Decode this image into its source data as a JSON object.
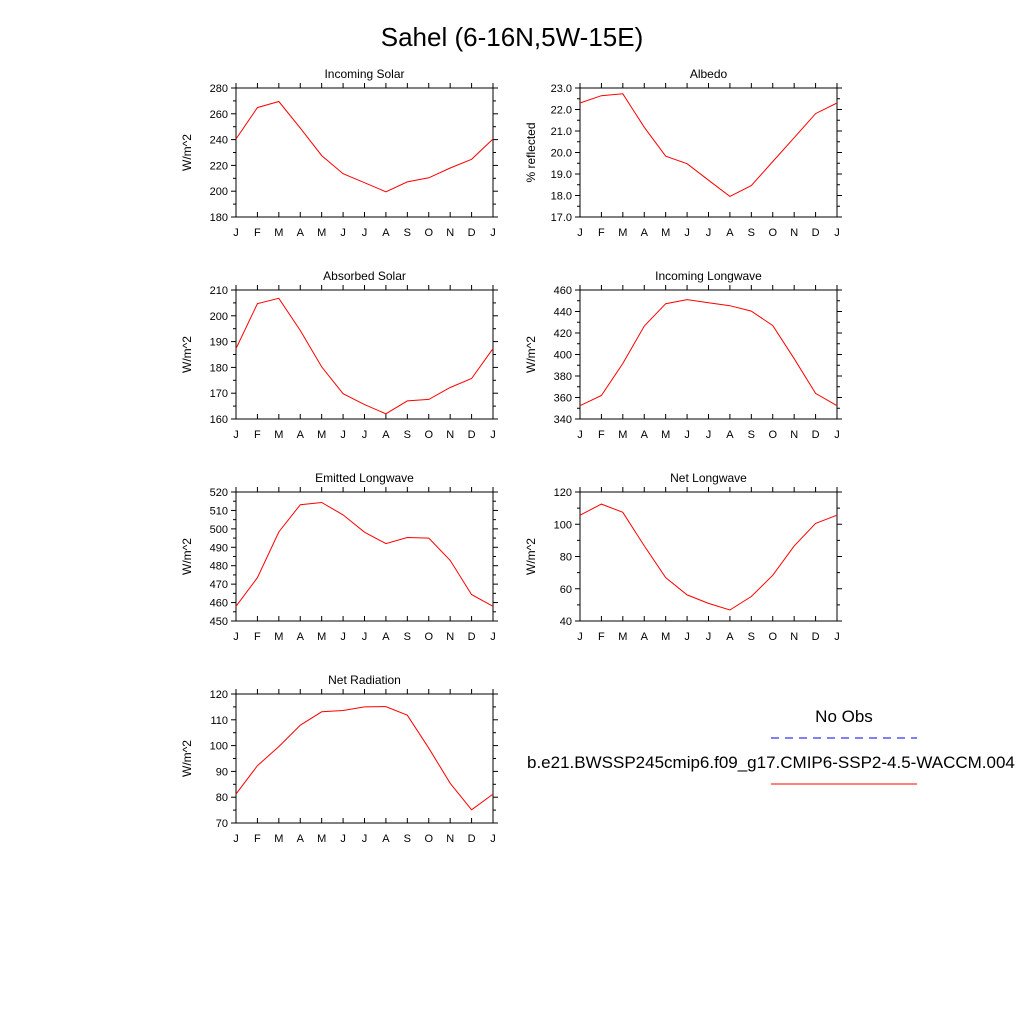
{
  "figure": {
    "title": "Sahel (6-16N,5W-15E)",
    "legend": {
      "placement": "right",
      "obs_label": "No Obs",
      "obs_color": "#0000ff",
      "model_label": "b.e21.BWSSP245cmip6.f09_g17.CMIP6-SSP2-4.5-WACCM.004",
      "model_color": "#ff0000"
    }
  },
  "chart_data": [
    {
      "type": "line",
      "title": "Incoming Solar",
      "ylabel": "W/m^2",
      "ylim": [
        180,
        280
      ],
      "yticks": [
        180,
        200,
        220,
        240,
        260,
        280
      ],
      "ytick_labels": [
        "180",
        "200",
        "220",
        "240",
        "260",
        "280"
      ],
      "categories": [
        "J",
        "F",
        "M",
        "A",
        "M",
        "J",
        "J",
        "A",
        "S",
        "O",
        "N",
        "D",
        "J"
      ],
      "values": [
        240.5,
        264.8,
        269.5,
        248.9,
        227.6,
        213.6,
        206.6,
        199.5,
        207.2,
        210.4,
        218.0,
        224.7,
        240.5
      ],
      "color": "#ff0000"
    },
    {
      "type": "line",
      "title": "Albedo",
      "ylabel": "% reflected",
      "ylim": [
        17.0,
        23.0
      ],
      "yticks": [
        17,
        18,
        19,
        20,
        21,
        22,
        23
      ],
      "ytick_labels": [
        "17.0",
        "18.0",
        "19.0",
        "20.0",
        "21.0",
        "22.0",
        "23.0"
      ],
      "categories": [
        "J",
        "F",
        "M",
        "A",
        "M",
        "J",
        "J",
        "A",
        "S",
        "O",
        "N",
        "D",
        "J"
      ],
      "values": [
        22.3,
        22.64,
        22.73,
        21.17,
        19.83,
        19.48,
        18.71,
        17.96,
        18.46,
        19.58,
        20.69,
        21.81,
        22.3
      ],
      "color": "#ff0000"
    },
    {
      "type": "line",
      "title": "Absorbed Solar",
      "ylabel": "W/m^2",
      "ylim": [
        160,
        210
      ],
      "yticks": [
        160,
        170,
        180,
        190,
        200,
        210
      ],
      "ytick_labels": [
        "160",
        "170",
        "180",
        "190",
        "200",
        "210"
      ],
      "categories": [
        "J",
        "F",
        "M",
        "A",
        "M",
        "J",
        "J",
        "A",
        "S",
        "O",
        "N",
        "D",
        "J"
      ],
      "values": [
        187.3,
        204.7,
        206.8,
        194.3,
        180.2,
        169.8,
        165.6,
        162.0,
        167.0,
        167.6,
        172.2,
        175.7,
        187.3
      ],
      "color": "#ff0000"
    },
    {
      "type": "line",
      "title": "Incoming Longwave",
      "ylabel": "W/m^2",
      "ylim": [
        340,
        460
      ],
      "yticks": [
        340,
        360,
        380,
        400,
        420,
        440,
        460
      ],
      "ytick_labels": [
        "340",
        "360",
        "380",
        "400",
        "420",
        "440",
        "460"
      ],
      "categories": [
        "J",
        "F",
        "M",
        "A",
        "M",
        "J",
        "J",
        "A",
        "S",
        "O",
        "N",
        "D",
        "J"
      ],
      "values": [
        352.4,
        361.9,
        391.6,
        426.5,
        447.3,
        451.1,
        448.2,
        445.4,
        440.4,
        426.9,
        396.1,
        363.8,
        352.4
      ],
      "color": "#ff0000"
    },
    {
      "type": "line",
      "title": "Emitted Longwave",
      "ylabel": "W/m^2",
      "ylim": [
        450,
        520
      ],
      "yticks": [
        450,
        460,
        470,
        480,
        490,
        500,
        510,
        520
      ],
      "ytick_labels": [
        "450",
        "460",
        "470",
        "480",
        "490",
        "500",
        "510",
        "520"
      ],
      "categories": [
        "J",
        "F",
        "M",
        "A",
        "M",
        "J",
        "J",
        "A",
        "S",
        "O",
        "N",
        "D",
        "J"
      ],
      "values": [
        458.0,
        473.5,
        498.3,
        513.1,
        514.3,
        507.6,
        498.2,
        492.0,
        495.3,
        495.0,
        482.9,
        464.3,
        458.0
      ],
      "color": "#ff0000"
    },
    {
      "type": "line",
      "title": "Net Longwave",
      "ylabel": "W/m^2",
      "ylim": [
        40,
        120
      ],
      "yticks": [
        40,
        60,
        80,
        100,
        120
      ],
      "ytick_labels": [
        "40",
        "60",
        "80",
        "100",
        "120"
      ],
      "categories": [
        "J",
        "F",
        "M",
        "A",
        "M",
        "J",
        "J",
        "A",
        "S",
        "O",
        "N",
        "D",
        "J"
      ],
      "values": [
        105.6,
        112.5,
        107.4,
        86.6,
        66.9,
        56.2,
        50.9,
        46.8,
        55.2,
        68.4,
        86.6,
        100.5,
        105.6
      ],
      "color": "#ff0000"
    },
    {
      "type": "line",
      "title": "Net Radiation",
      "ylabel": "W/m^2",
      "ylim": [
        70,
        120
      ],
      "yticks": [
        70,
        80,
        90,
        100,
        110,
        120
      ],
      "ytick_labels": [
        "70",
        "80",
        "90",
        "100",
        "110",
        "120"
      ],
      "categories": [
        "J",
        "F",
        "M",
        "A",
        "M",
        "J",
        "J",
        "A",
        "S",
        "O",
        "N",
        "D",
        "J"
      ],
      "values": [
        81.2,
        92.2,
        99.6,
        107.9,
        113.1,
        113.6,
        115.0,
        115.1,
        111.8,
        99.0,
        85.4,
        75.1,
        81.2
      ],
      "color": "#ff0000"
    }
  ]
}
